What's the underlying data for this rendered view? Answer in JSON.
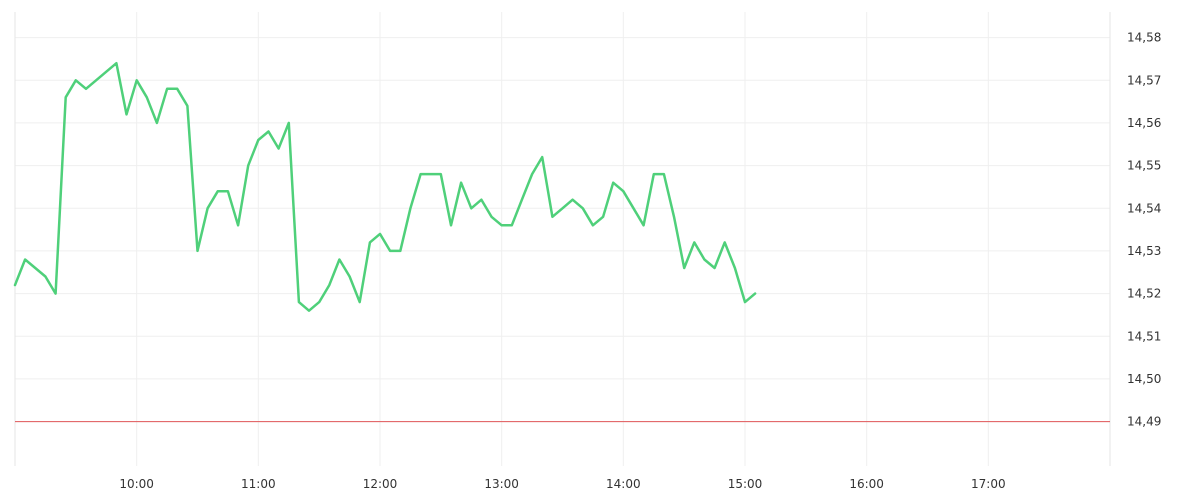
{
  "chart_data": {
    "type": "line",
    "xlabel": "",
    "ylabel": "",
    "x_ticks": [
      "10:00",
      "11:00",
      "12:00",
      "13:00",
      "14:00",
      "15:00",
      "16:00",
      "17:00"
    ],
    "y_ticks": [
      "14,49",
      "14,50",
      "14,51",
      "14,52",
      "14,53",
      "14,54",
      "14,55",
      "14,56",
      "14,57",
      "14,58"
    ],
    "xlim": [
      "09:00",
      "18:00"
    ],
    "ylim": [
      14.481,
      14.586
    ],
    "grid": true,
    "y_axis_side": "right",
    "reference_line": {
      "value": 14.49,
      "color": "#e15759"
    },
    "series": [
      {
        "color": "#4fd07a",
        "x": [
          "09:00",
          "09:05",
          "09:15",
          "09:20",
          "09:25",
          "09:30",
          "09:35",
          "09:40",
          "09:45",
          "09:50",
          "09:55",
          "10:00",
          "10:05",
          "10:10",
          "10:15",
          "10:20",
          "10:25",
          "10:30",
          "10:35",
          "10:40",
          "10:45",
          "10:50",
          "10:55",
          "11:00",
          "11:05",
          "11:10",
          "11:15",
          "11:20",
          "11:25",
          "11:30",
          "11:35",
          "11:40",
          "11:45",
          "11:50",
          "11:55",
          "12:00",
          "12:05",
          "12:10",
          "12:15",
          "12:20",
          "12:25",
          "12:30",
          "12:35",
          "12:40",
          "12:45",
          "12:50",
          "12:55",
          "13:00",
          "13:05",
          "13:10",
          "13:15",
          "13:20",
          "13:25",
          "13:30",
          "13:35",
          "13:40",
          "13:45",
          "13:50",
          "13:55",
          "14:00",
          "14:05",
          "14:10",
          "14:15",
          "14:20",
          "14:25",
          "14:30",
          "14:35",
          "14:40",
          "14:45",
          "14:50",
          "14:55",
          "15:00",
          "15:05"
        ],
        "values": [
          14.522,
          14.528,
          14.524,
          14.52,
          14.566,
          14.57,
          14.568,
          14.57,
          14.572,
          14.574,
          14.562,
          14.57,
          14.566,
          14.56,
          14.568,
          14.568,
          14.564,
          14.53,
          14.54,
          14.544,
          14.544,
          14.536,
          14.55,
          14.556,
          14.558,
          14.554,
          14.56,
          14.518,
          14.516,
          14.518,
          14.522,
          14.528,
          14.524,
          14.518,
          14.532,
          14.534,
          14.53,
          14.53,
          14.54,
          14.548,
          14.548,
          14.548,
          14.536,
          14.546,
          14.54,
          14.542,
          14.538,
          14.536,
          14.536,
          14.542,
          14.548,
          14.552,
          14.538,
          14.54,
          14.542,
          14.54,
          14.536,
          14.538,
          14.546,
          14.544,
          14.54,
          14.536,
          14.548,
          14.548,
          14.538,
          14.526,
          14.532,
          14.528,
          14.526,
          14.532,
          14.526,
          14.518,
          14.52
        ]
      }
    ]
  }
}
